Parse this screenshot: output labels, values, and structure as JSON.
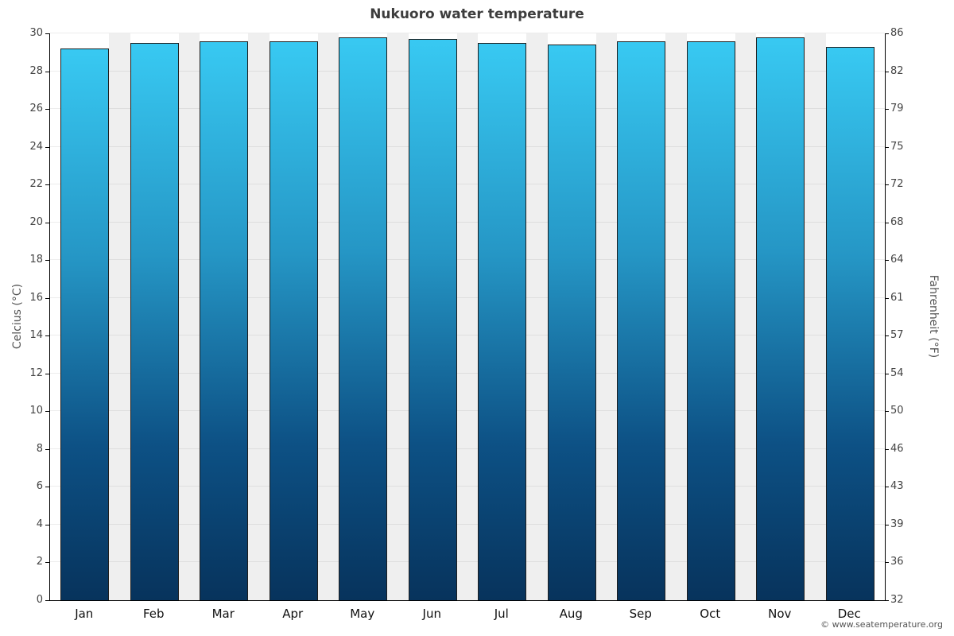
{
  "title": "Nukuoro water temperature",
  "left_axis": {
    "title": "Celcius (°C)"
  },
  "right_axis": {
    "title": "Fahrenheit (°F)"
  },
  "copyright": "© www.seatemperature.org",
  "chart_data": {
    "type": "bar",
    "title": "Nukuoro water temperature",
    "categories": [
      "Jan",
      "Feb",
      "Mar",
      "Apr",
      "May",
      "Jun",
      "Jul",
      "Aug",
      "Sep",
      "Oct",
      "Nov",
      "Dec"
    ],
    "values": [
      29.2,
      29.5,
      29.6,
      29.6,
      29.8,
      29.7,
      29.5,
      29.4,
      29.6,
      29.6,
      29.8,
      29.3
    ],
    "unit": "°C",
    "xlabel": "",
    "ylabel": "Celcius (°C)",
    "ylabel_right": "Fahrenheit (°F)",
    "ylim": [
      0,
      30
    ],
    "yticks_celsius": [
      0,
      2,
      4,
      6,
      8,
      10,
      12,
      14,
      16,
      18,
      20,
      22,
      24,
      26,
      28,
      30
    ],
    "yticks_fahrenheit": [
      32,
      36,
      39,
      43,
      46,
      50,
      54,
      57,
      61,
      64,
      68,
      72,
      75,
      79,
      82,
      86
    ],
    "grid": true,
    "legend": "none",
    "bar_gradient_top": "#38c9f2",
    "bar_gradient_bottom": "#07335c",
    "stripe_color": "#efefef"
  }
}
